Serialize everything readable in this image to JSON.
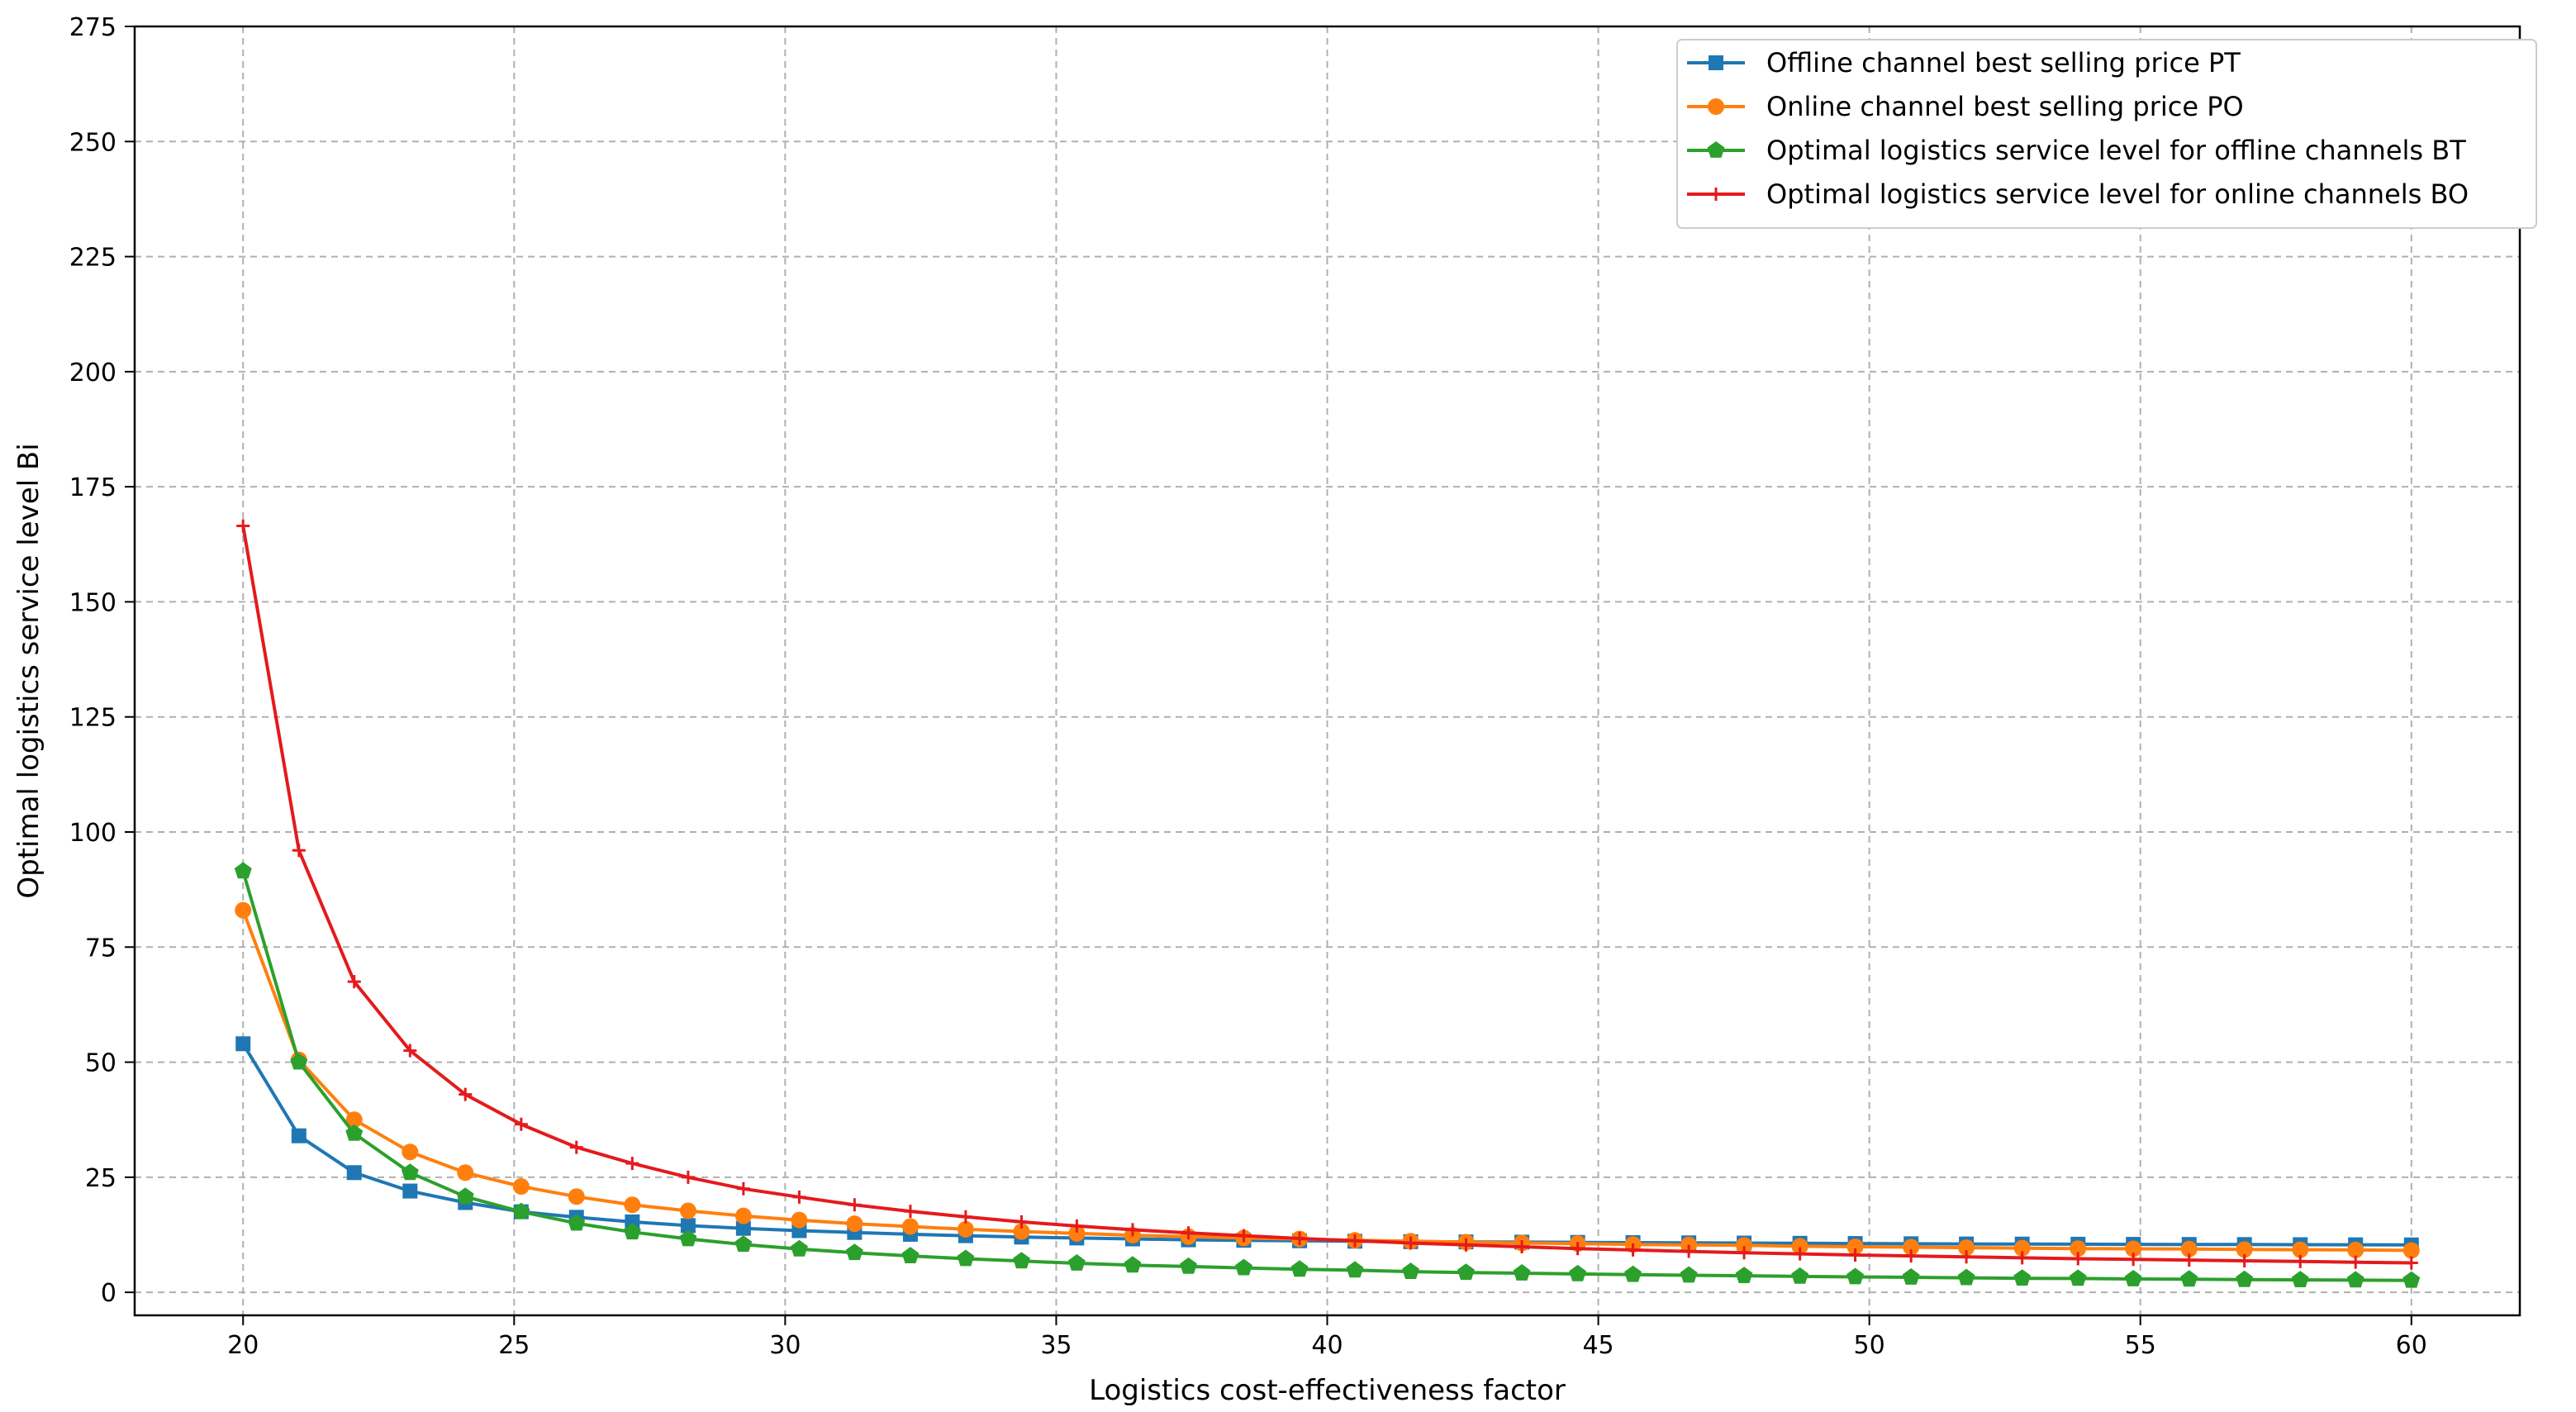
{
  "chart_data": {
    "type": "line",
    "xlabel": "Logistics cost-effectiveness factor",
    "ylabel": "Optimal logistics service level Bi",
    "xlim": [
      18,
      62
    ],
    "ylim": [
      -5,
      275
    ],
    "xticks": [
      20,
      25,
      30,
      35,
      40,
      45,
      50,
      55,
      60
    ],
    "yticks": [
      0,
      25,
      50,
      75,
      100,
      125,
      150,
      175,
      200,
      225,
      250,
      275
    ],
    "grid": true,
    "legend_position": "top-right",
    "x": [
      20,
      21.03,
      22.05,
      23.08,
      24.1,
      25.13,
      26.15,
      27.18,
      28.21,
      29.23,
      30.26,
      31.28,
      32.31,
      33.33,
      34.36,
      35.38,
      36.41,
      37.44,
      38.46,
      39.49,
      40.51,
      41.54,
      42.56,
      43.59,
      44.62,
      45.64,
      46.67,
      47.69,
      48.72,
      49.74,
      50.77,
      51.79,
      52.82,
      53.85,
      54.87,
      55.9,
      56.92,
      57.95,
      58.97,
      60
    ],
    "series": [
      {
        "name": "Offline channel best selling price PT",
        "color": "#1f77b4",
        "marker": "square",
        "values": [
          54,
          34,
          26,
          22,
          19.5,
          17.5,
          16.3,
          15.3,
          14.5,
          13.9,
          13.4,
          13.0,
          12.6,
          12.3,
          12.0,
          11.8,
          11.6,
          11.4,
          11.3,
          11.2,
          11.1,
          11.0,
          10.95,
          10.9,
          10.85,
          10.8,
          10.75,
          10.7,
          10.65,
          10.6,
          10.55,
          10.5,
          10.48,
          10.45,
          10.42,
          10.4,
          10.38,
          10.35,
          10.32,
          10.3
        ]
      },
      {
        "name": "Online channel best selling price PO",
        "color": "#ff7f0e",
        "marker": "circle",
        "values": [
          83,
          50.5,
          37.5,
          30.5,
          26,
          23,
          20.8,
          19,
          17.7,
          16.6,
          15.7,
          14.9,
          14.3,
          13.7,
          13.2,
          12.8,
          12.4,
          12.1,
          11.8,
          11.6,
          11.3,
          11.1,
          10.9,
          10.7,
          10.6,
          10.4,
          10.3,
          10.2,
          10.0,
          9.9,
          9.8,
          9.7,
          9.6,
          9.5,
          9.45,
          9.4,
          9.3,
          9.25,
          9.2,
          9.1
        ]
      },
      {
        "name": "Optimal logistics service level for offline channels BT",
        "color": "#2ca02c",
        "marker": "pentagon",
        "values": [
          91.5,
          50,
          34.5,
          26,
          20.8,
          17.5,
          15,
          13.1,
          11.6,
          10.4,
          9.4,
          8.6,
          7.9,
          7.3,
          6.8,
          6.3,
          5.9,
          5.6,
          5.3,
          5.0,
          4.8,
          4.5,
          4.3,
          4.15,
          4.0,
          3.85,
          3.7,
          3.6,
          3.45,
          3.35,
          3.25,
          3.15,
          3.05,
          3.0,
          2.9,
          2.85,
          2.75,
          2.7,
          2.65,
          2.6
        ]
      },
      {
        "name": "Optimal logistics service level for online channels BO",
        "color": "#e41a1c",
        "marker": "plus",
        "values": [
          166.5,
          96,
          67.5,
          52.5,
          43,
          36.5,
          31.5,
          28,
          25,
          22.5,
          20.7,
          19,
          17.6,
          16.4,
          15.3,
          14.4,
          13.6,
          12.9,
          12.3,
          11.7,
          11.2,
          10.7,
          10.3,
          9.9,
          9.5,
          9.2,
          8.9,
          8.6,
          8.35,
          8.1,
          7.9,
          7.7,
          7.5,
          7.3,
          7.15,
          7.0,
          6.85,
          6.7,
          6.55,
          6.4
        ]
      }
    ]
  }
}
